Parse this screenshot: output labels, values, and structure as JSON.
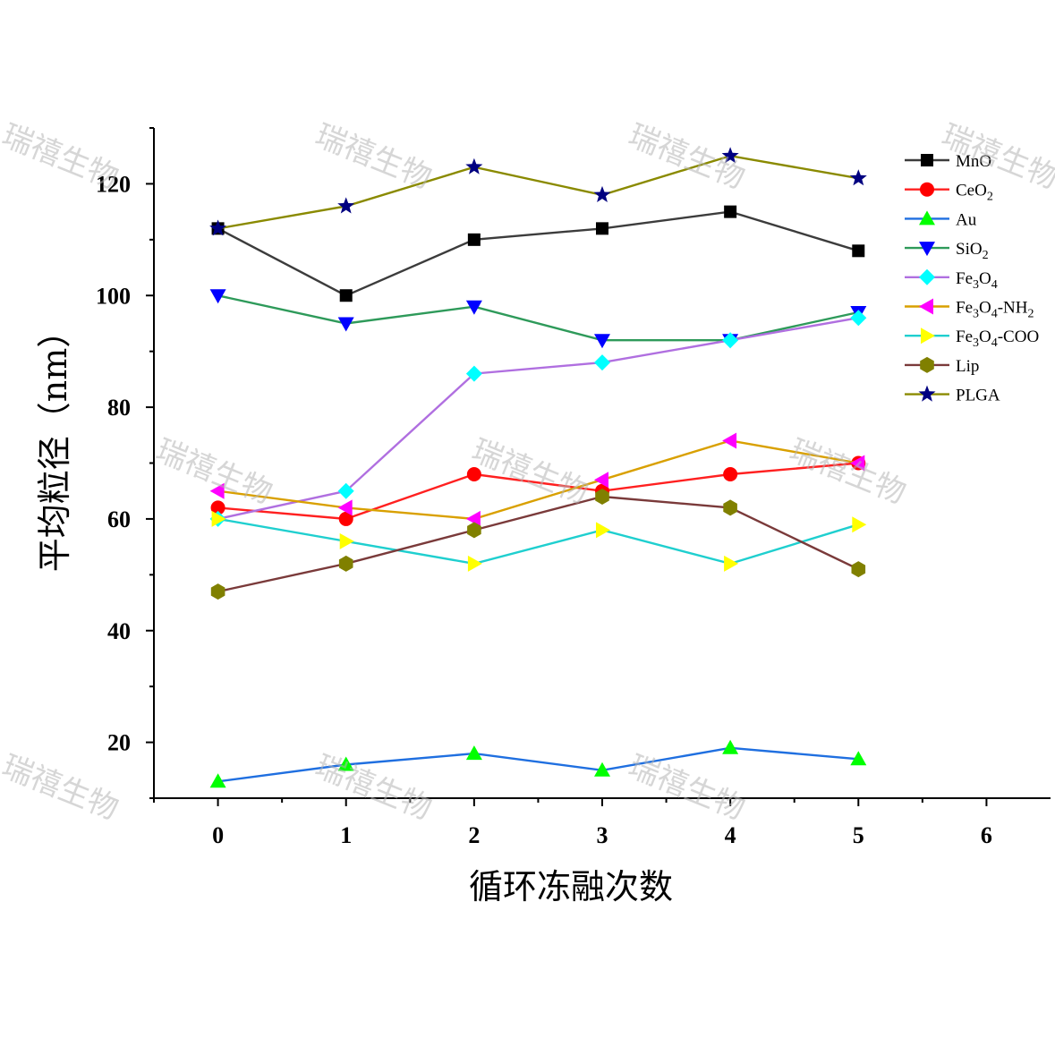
{
  "chart_data": {
    "type": "line",
    "xlabel": "循环冻融次数",
    "ylabel": "平均粒径（nm）",
    "x": [
      0,
      1,
      2,
      3,
      4,
      5
    ],
    "xlim": [
      -0.5,
      6.5
    ],
    "ylim": [
      10,
      130
    ],
    "x_ticks": [
      "0",
      "1",
      "2",
      "3",
      "4",
      "5",
      "6"
    ],
    "y_ticks": [
      "20",
      "40",
      "60",
      "80",
      "100",
      "120"
    ],
    "grid": false,
    "legend_position": "top-right",
    "series": [
      {
        "name": "MnO",
        "legend_label": {
          "base": "MnO",
          "sub": ""
        },
        "color": "#3c3c3c",
        "marker": "square",
        "marker_color": "#000000",
        "values": [
          112,
          100,
          110,
          112,
          115,
          108
        ]
      },
      {
        "name": "CeO2",
        "legend_label": {
          "base": "CeO",
          "sub": "2"
        },
        "color": "#ff2020",
        "marker": "circle",
        "marker_color": "#ff0000",
        "values": [
          62,
          60,
          68,
          65,
          68,
          70
        ]
      },
      {
        "name": "Au",
        "legend_label": {
          "base": "Au",
          "sub": ""
        },
        "color": "#1f6fe0",
        "marker": "triangle-up",
        "marker_color": "#00ff00",
        "values": [
          13,
          16,
          18,
          15,
          19,
          17
        ]
      },
      {
        "name": "SiO2",
        "legend_label": {
          "base": "SiO",
          "sub": "2"
        },
        "color": "#2e9a5a",
        "marker": "triangle-down",
        "marker_color": "#0000ff",
        "values": [
          100,
          95,
          98,
          92,
          92,
          97
        ]
      },
      {
        "name": "Fe3O4",
        "legend_label": {
          "base": "Fe",
          "sub": "3",
          "base2": "O",
          "sub2": "4"
        },
        "color": "#b06fe0",
        "marker": "diamond",
        "marker_color": "#00ffff",
        "values": [
          60,
          65,
          86,
          88,
          92,
          96
        ]
      },
      {
        "name": "Fe3O4-NH2",
        "legend_label": {
          "base": "Fe",
          "sub": "3",
          "base2": "O",
          "sub2": "4",
          "rest": "-NH",
          "sub3": "2"
        },
        "color": "#d9a000",
        "marker": "triangle-left",
        "marker_color": "#ff00ff",
        "values": [
          65,
          62,
          60,
          67,
          74,
          70
        ]
      },
      {
        "name": "Fe3O4-COO",
        "legend_label": {
          "base": "Fe",
          "sub": "3",
          "base2": "O",
          "sub2": "4",
          "rest": "-COO"
        },
        "color": "#1fcfcf",
        "marker": "triangle-right",
        "marker_color": "#ffff00",
        "values": [
          60,
          56,
          52,
          58,
          52,
          59
        ]
      },
      {
        "name": "Lip",
        "legend_label": {
          "base": "Lip",
          "sub": ""
        },
        "color": "#7a3a3a",
        "marker": "hexagon",
        "marker_color": "#808000",
        "values": [
          47,
          52,
          58,
          64,
          62,
          51
        ]
      },
      {
        "name": "PLGA",
        "legend_label": {
          "base": "PLGA",
          "sub": ""
        },
        "color": "#8a8a00",
        "marker": "star",
        "marker_color": "#000080",
        "values": [
          112,
          116,
          123,
          118,
          125,
          121
        ]
      }
    ]
  },
  "watermarks": [
    "瑞禧生物",
    "瑞禧生物",
    "瑞禧生物",
    "瑞禧生物",
    "瑞禧生物",
    "瑞禧生物",
    "瑞禧生物",
    "瑞禧生物",
    "瑞禧生物",
    "瑞禧生物"
  ]
}
